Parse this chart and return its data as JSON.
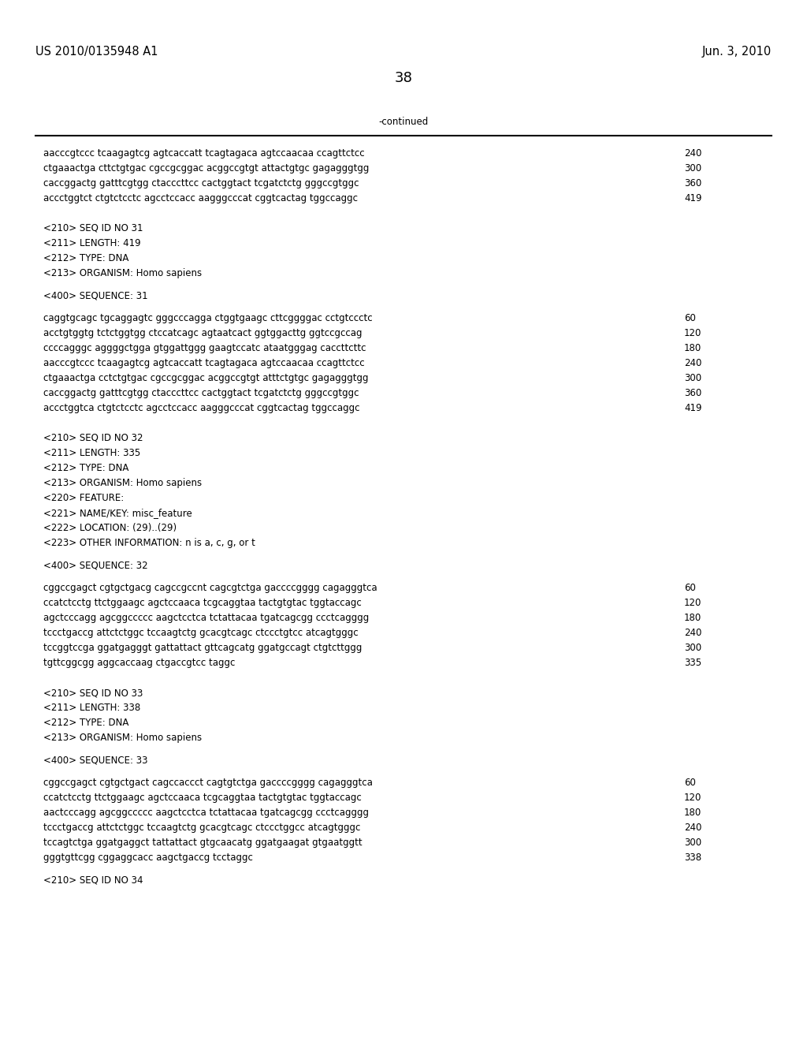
{
  "header_left": "US 2010/0135948 A1",
  "header_right": "Jun. 3, 2010",
  "page_number": "38",
  "continued_label": "-continued",
  "background_color": "#ffffff",
  "text_color": "#000000",
  "font_size_header": 10.5,
  "font_size_body": 8.5,
  "font_size_page": 13,
  "lines": [
    {
      "text": "aacccgtccc tcaagagtcg agtcaccatt tcagtagaca agtccaacaa ccagttctcc",
      "num": "240",
      "type": "seq"
    },
    {
      "text": "ctgaaactga cttctgtgac cgccgcggac acggccgtgt attactgtgc gagagggtgg",
      "num": "300",
      "type": "seq"
    },
    {
      "text": "caccggactg gatttcgtgg ctacccttcc cactggtact tcgatctctg gggccgtggc",
      "num": "360",
      "type": "seq"
    },
    {
      "text": "accctggtct ctgtctcctc agcctccacc aagggcccat cggtcactag tggccaggc",
      "num": "419",
      "type": "seq"
    },
    {
      "text": "",
      "type": "blank"
    },
    {
      "text": "",
      "type": "blank"
    },
    {
      "text": "<210> SEQ ID NO 31",
      "type": "meta"
    },
    {
      "text": "<211> LENGTH: 419",
      "type": "meta"
    },
    {
      "text": "<212> TYPE: DNA",
      "type": "meta"
    },
    {
      "text": "<213> ORGANISM: Homo sapiens",
      "type": "meta"
    },
    {
      "text": "",
      "type": "blank"
    },
    {
      "text": "<400> SEQUENCE: 31",
      "type": "meta"
    },
    {
      "text": "",
      "type": "blank"
    },
    {
      "text": "caggtgcagc tgcaggagtc gggcccagga ctggtgaagc cttcggggac cctgtccctc",
      "num": "60",
      "type": "seq"
    },
    {
      "text": "acctgtggtg tctctggtgg ctccatcagc agtaatcact ggtggacttg ggtccgccag",
      "num": "120",
      "type": "seq"
    },
    {
      "text": "ccccagggc aggggctgga gtggattggg gaagtccatc ataatgggag caccttcttc",
      "num": "180",
      "type": "seq"
    },
    {
      "text": "aacccgtccc tcaagagtcg agtcaccatt tcagtagaca agtccaacaa ccagttctcc",
      "num": "240",
      "type": "seq"
    },
    {
      "text": "ctgaaactga cctctgtgac cgccgcggac acggccgtgt atttctgtgc gagagggtgg",
      "num": "300",
      "type": "seq"
    },
    {
      "text": "caccggactg gatttcgtgg ctacccttcc cactggtact tcgatctctg gggccgtggc",
      "num": "360",
      "type": "seq"
    },
    {
      "text": "accctggtca ctgtctcctc agcctccacc aagggcccat cggtcactag tggccaggc",
      "num": "419",
      "type": "seq"
    },
    {
      "text": "",
      "type": "blank"
    },
    {
      "text": "",
      "type": "blank"
    },
    {
      "text": "<210> SEQ ID NO 32",
      "type": "meta"
    },
    {
      "text": "<211> LENGTH: 335",
      "type": "meta"
    },
    {
      "text": "<212> TYPE: DNA",
      "type": "meta"
    },
    {
      "text": "<213> ORGANISM: Homo sapiens",
      "type": "meta"
    },
    {
      "text": "<220> FEATURE:",
      "type": "meta"
    },
    {
      "text": "<221> NAME/KEY: misc_feature",
      "type": "meta"
    },
    {
      "text": "<222> LOCATION: (29)..(29)",
      "type": "meta"
    },
    {
      "text": "<223> OTHER INFORMATION: n is a, c, g, or t",
      "type": "meta"
    },
    {
      "text": "",
      "type": "blank"
    },
    {
      "text": "<400> SEQUENCE: 32",
      "type": "meta"
    },
    {
      "text": "",
      "type": "blank"
    },
    {
      "text": "cggccgagct cgtgctgacg cagccgccnt cagcgtctga gaccccgggg cagagggtca",
      "num": "60",
      "type": "seq"
    },
    {
      "text": "ccatctcctg ttctggaagc agctccaaca tcgcaggtaa tactgtgtac tggtaccagc",
      "num": "120",
      "type": "seq"
    },
    {
      "text": "agctcccagg agcggccccc aagctcctca tctattacaa tgatcagcgg ccctcagggg",
      "num": "180",
      "type": "seq"
    },
    {
      "text": "tccctgaccg attctctggc tccaagtctg gcacgtcagc ctccctgtcc atcagtgggc",
      "num": "240",
      "type": "seq"
    },
    {
      "text": "tccggtccga ggatgagggt gattattact gttcagcatg ggatgccagt ctgtcttggg",
      "num": "300",
      "type": "seq"
    },
    {
      "text": "tgttcggcgg aggcaccaag ctgaccgtcc taggc",
      "num": "335",
      "type": "seq"
    },
    {
      "text": "",
      "type": "blank"
    },
    {
      "text": "",
      "type": "blank"
    },
    {
      "text": "<210> SEQ ID NO 33",
      "type": "meta"
    },
    {
      "text": "<211> LENGTH: 338",
      "type": "meta"
    },
    {
      "text": "<212> TYPE: DNA",
      "type": "meta"
    },
    {
      "text": "<213> ORGANISM: Homo sapiens",
      "type": "meta"
    },
    {
      "text": "",
      "type": "blank"
    },
    {
      "text": "<400> SEQUENCE: 33",
      "type": "meta"
    },
    {
      "text": "",
      "type": "blank"
    },
    {
      "text": "cggccgagct cgtgctgact cagccaccct cagtgtctga gaccccgggg cagagggtca",
      "num": "60",
      "type": "seq"
    },
    {
      "text": "ccatctcctg ttctggaagc agctccaaca tcgcaggtaa tactgtgtac tggtaccagc",
      "num": "120",
      "type": "seq"
    },
    {
      "text": "aactcccagg agcggccccc aagctcctca tctattacaa tgatcagcgg ccctcagggg",
      "num": "180",
      "type": "seq"
    },
    {
      "text": "tccctgaccg attctctggc tccaagtctg gcacgtcagc ctccctggcc atcagtgggc",
      "num": "240",
      "type": "seq"
    },
    {
      "text": "tccagtctga ggatgaggct tattattact gtgcaacatg ggatgaagat gtgaatggtt",
      "num": "300",
      "type": "seq"
    },
    {
      "text": "gggtgttcgg cggaggcacc aagctgaccg tcctaggc",
      "num": "338",
      "type": "seq"
    },
    {
      "text": "",
      "type": "blank"
    },
    {
      "text": "<210> SEQ ID NO 34",
      "type": "meta"
    }
  ]
}
